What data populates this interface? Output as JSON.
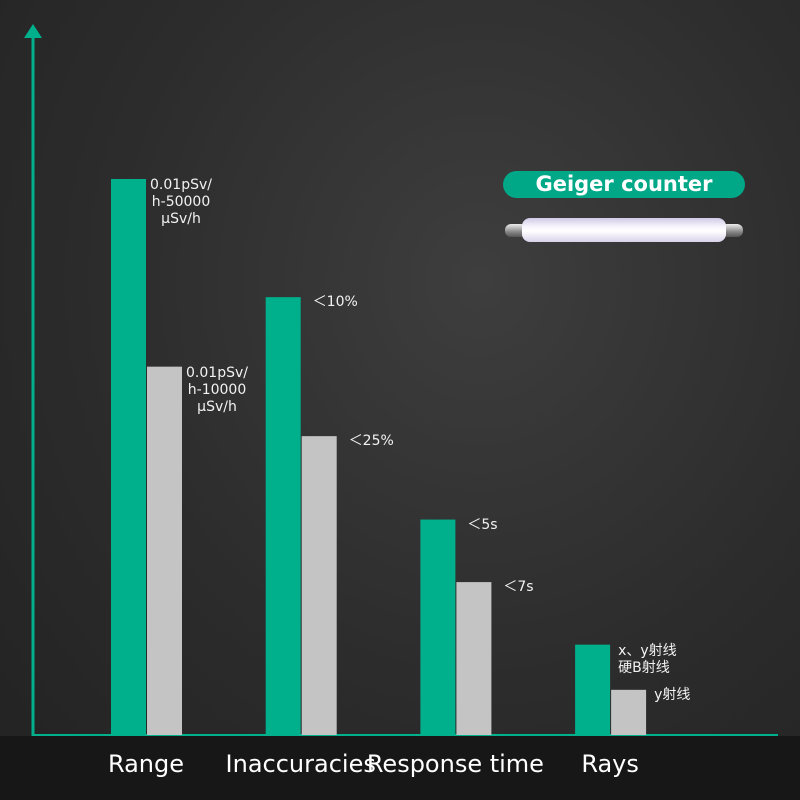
{
  "chart_data": {
    "type": "bar",
    "categories": [
      "Range",
      "Inaccuracies",
      "Response time",
      "Rays"
    ],
    "value_unit": "relative height (fraction of axis height; no numeric axis shown)",
    "series": [
      {
        "color": "#00b08c",
        "values": [
          0.8,
          0.63,
          0.31,
          0.13
        ],
        "labels": [
          "0.01pSv/\nh-50000\nμSv/h",
          "＜10%",
          "＜5s",
          "x、y射线\n硬B射线"
        ]
      },
      {
        "color": "#c4c4c4",
        "values": [
          0.53,
          0.43,
          0.22,
          0.065
        ],
        "labels": [
          "0.01pSv/\nh-10000\nμSv/h",
          "＜25%",
          "＜7s",
          "y射线"
        ]
      }
    ],
    "axis_color": "#00b08c",
    "grid": false,
    "legend": {
      "badge_label": "Geiger counter",
      "badge_color": "#00a887",
      "image": "geiger-tube"
    }
  }
}
